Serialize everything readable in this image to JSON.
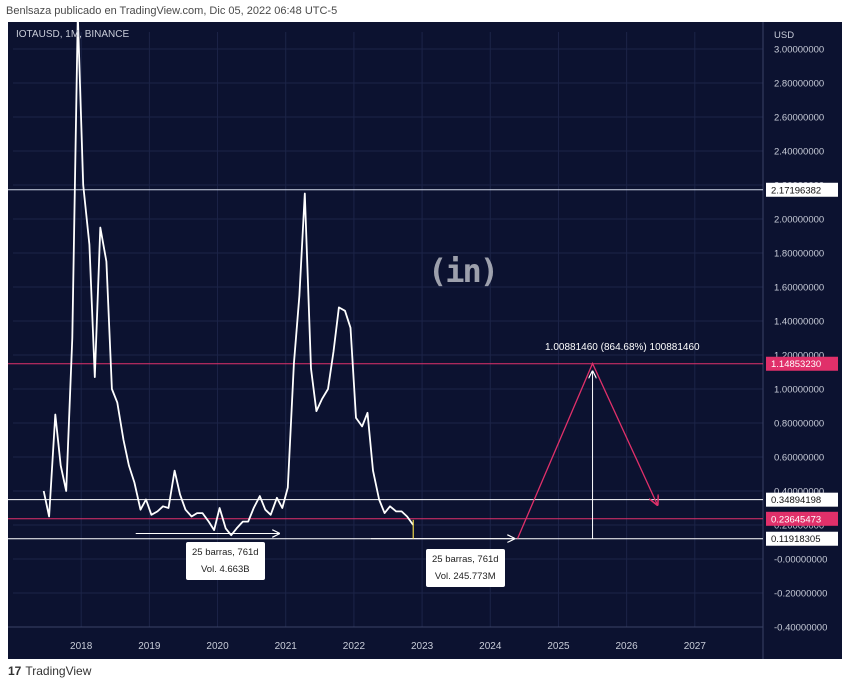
{
  "header": {
    "text": "Benlsaza publicado en TradingView.com, Dic 05, 2022 06:48 UTC-5"
  },
  "symbol": {
    "text": "IOTAUSD, 1M, BINANCE"
  },
  "footer": {
    "logo": "17",
    "brand": "TradingView"
  },
  "watermark": {
    "text": "(in)"
  },
  "measure_label": {
    "text": "1.00881460 (864.68%) 100881460"
  },
  "boxes": [
    {
      "line1": "25 barras, 761d",
      "line2": "Vol. 4.663B"
    },
    {
      "line1": "25 barras, 761d",
      "line2": "Vol. 245.773M"
    }
  ],
  "colors": {
    "background": "#0c1230",
    "price_line": "#ffffff",
    "pink": "#e0306a",
    "grid": "#1c2448"
  },
  "chart_data": {
    "type": "line",
    "title": "IOTAUSD, 1M, BINANCE",
    "y_unit": "USD",
    "ylim": [
      -0.4,
      3.1
    ],
    "yticks": [
      "3.00000000",
      "2.80000000",
      "2.60000000",
      "2.40000000",
      "2.20000000",
      "2.00000000",
      "1.80000000",
      "1.60000000",
      "1.40000000",
      "1.20000000",
      "1.00000000",
      "0.80000000",
      "0.60000000",
      "0.40000000",
      "0.20000000",
      "-0.00000000",
      "-0.20000000",
      "-0.40000000"
    ],
    "xticks": [
      "2018",
      "2019",
      "2020",
      "2021",
      "2022",
      "2023",
      "2024",
      "2025",
      "2026",
      "2027"
    ],
    "x": [
      2017.45,
      2017.53,
      2017.62,
      2017.7,
      2017.78,
      2017.87,
      2017.95,
      2018.03,
      2018.12,
      2018.2,
      2018.28,
      2018.37,
      2018.45,
      2018.53,
      2018.62,
      2018.7,
      2018.78,
      2018.87,
      2018.95,
      2019.03,
      2019.12,
      2019.2,
      2019.28,
      2019.37,
      2019.45,
      2019.53,
      2019.62,
      2019.7,
      2019.78,
      2019.87,
      2019.95,
      2020.03,
      2020.12,
      2020.2,
      2020.28,
      2020.37,
      2020.45,
      2020.53,
      2020.62,
      2020.7,
      2020.78,
      2020.87,
      2020.95,
      2021.03,
      2021.12,
      2021.2,
      2021.28,
      2021.37,
      2021.45,
      2021.53,
      2021.62,
      2021.7,
      2021.78,
      2021.87,
      2021.95,
      2022.03,
      2022.12,
      2022.2,
      2022.28,
      2022.37,
      2022.45,
      2022.53,
      2022.62,
      2022.7,
      2022.78,
      2022.87
    ],
    "y": [
      0.4,
      0.25,
      0.85,
      0.55,
      0.4,
      1.3,
      3.2,
      2.2,
      1.85,
      1.07,
      1.95,
      1.75,
      1.0,
      0.92,
      0.7,
      0.55,
      0.45,
      0.29,
      0.35,
      0.26,
      0.28,
      0.31,
      0.3,
      0.52,
      0.38,
      0.29,
      0.25,
      0.27,
      0.27,
      0.22,
      0.17,
      0.3,
      0.18,
      0.14,
      0.18,
      0.22,
      0.22,
      0.3,
      0.37,
      0.29,
      0.26,
      0.36,
      0.3,
      0.42,
      1.15,
      1.55,
      2.15,
      1.12,
      0.87,
      0.94,
      1.0,
      1.22,
      1.48,
      1.46,
      1.36,
      0.83,
      0.78,
      0.86,
      0.52,
      0.35,
      0.27,
      0.31,
      0.28,
      0.28,
      0.25,
      0.2
    ],
    "levels": [
      {
        "value": 2.17196382,
        "label": "2.17196382",
        "color": "#cfd6e6"
      },
      {
        "value": 1.1485323,
        "label": "1.14853230",
        "color": "#e0306a"
      },
      {
        "value": 0.34894198,
        "label": "0.34894198",
        "color": "#ffffff"
      },
      {
        "value": 0.23645473,
        "label": "0.23645473",
        "color": "#e0306a"
      },
      {
        "value": 0.11918305,
        "label": "0.11918305",
        "color": "#ffffff"
      }
    ],
    "projection": {
      "x": [
        2024.4,
        2025.5,
        2026.45
      ],
      "y": [
        0.12,
        1.15,
        0.32
      ]
    },
    "measure_top": {
      "x": 2025.5,
      "y": 1.15
    },
    "arrows": [
      {
        "x1": 2018.8,
        "x2": 2020.9,
        "y": 0.15
      },
      {
        "x1": 2022.25,
        "x2": 2024.35,
        "y": 0.12
      }
    ],
    "measure_vertical": {
      "x": 2025.5,
      "y1": 0.12,
      "y2": 1.15
    },
    "marker": {
      "x": 2022.87,
      "y1": 0.12,
      "y2": 0.23
    },
    "grid": true
  }
}
